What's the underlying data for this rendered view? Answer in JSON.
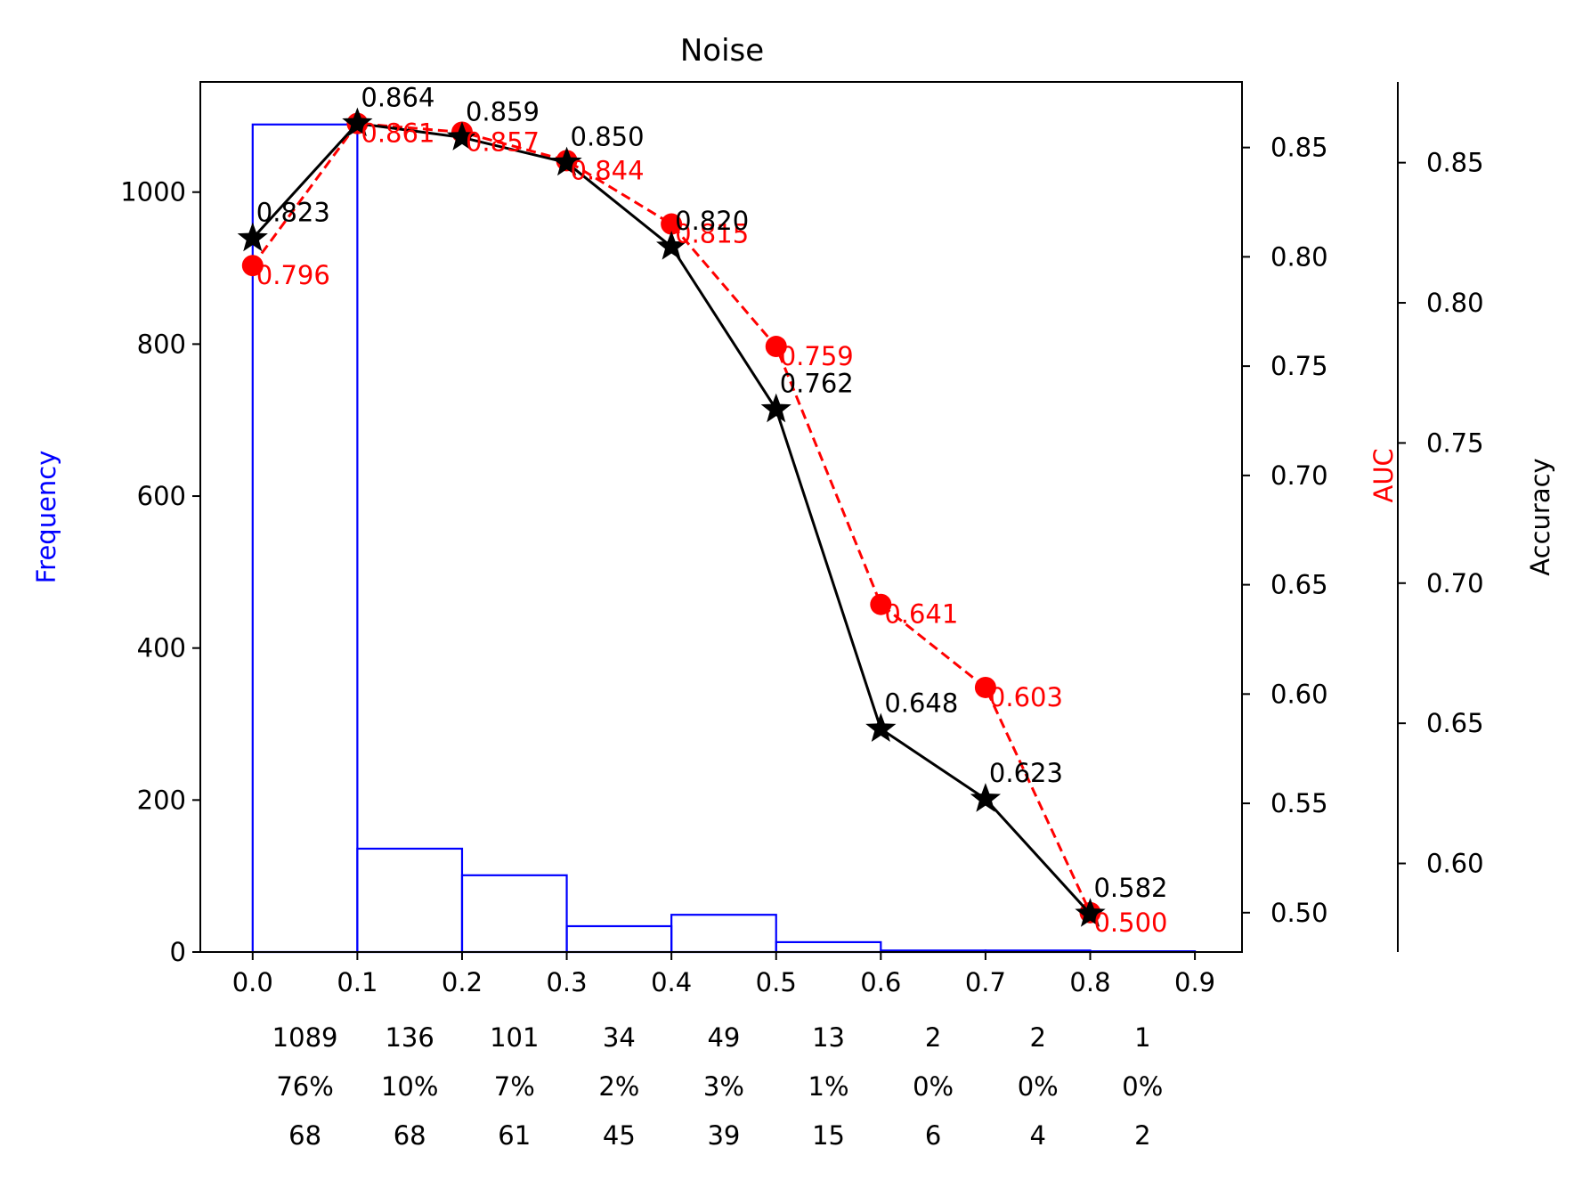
{
  "chart_data": {
    "type": "bar",
    "title": "Noise",
    "x_ticks": [
      "0.0",
      "0.1",
      "0.2",
      "0.3",
      "0.4",
      "0.5",
      "0.6",
      "0.7",
      "0.8",
      "0.9"
    ],
    "xlim": [
      -0.05,
      0.945
    ],
    "histogram": {
      "ylabel": "Frequency",
      "color": "#0000ff",
      "ylim": [
        0,
        1145
      ],
      "y_ticks": [
        0,
        200,
        400,
        600,
        800,
        1000
      ],
      "bins": [
        {
          "x0": 0.0,
          "x1": 0.1,
          "value": 1089
        },
        {
          "x0": 0.1,
          "x1": 0.2,
          "value": 136
        },
        {
          "x0": 0.2,
          "x1": 0.3,
          "value": 101
        },
        {
          "x0": 0.3,
          "x1": 0.4,
          "value": 34
        },
        {
          "x0": 0.4,
          "x1": 0.5,
          "value": 49
        },
        {
          "x0": 0.5,
          "x1": 0.6,
          "value": 13
        },
        {
          "x0": 0.6,
          "x1": 0.7,
          "value": 2
        },
        {
          "x0": 0.7,
          "x1": 0.8,
          "value": 2
        },
        {
          "x0": 0.8,
          "x1": 0.9,
          "value": 1
        }
      ]
    },
    "auc": {
      "ylabel": "AUC",
      "color": "#ff0000",
      "ylim": [
        0.482,
        0.88
      ],
      "y_ticks": [
        "0.50",
        "0.55",
        "0.60",
        "0.65",
        "0.70",
        "0.75",
        "0.80",
        "0.85"
      ],
      "x": [
        0.0,
        0.1,
        0.2,
        0.3,
        0.4,
        0.5,
        0.6,
        0.7,
        0.8
      ],
      "values": [
        0.796,
        0.861,
        0.857,
        0.844,
        0.815,
        0.759,
        0.641,
        0.603,
        0.5
      ],
      "labels": [
        "0.796",
        "0.861",
        "0.857",
        "0.844",
        "0.815",
        "0.759",
        "0.641",
        "0.603",
        "0.500"
      ]
    },
    "accuracy": {
      "ylabel": "Accuracy",
      "color": "#000000",
      "ylim": [
        0.5684,
        0.8788
      ],
      "y_ticks": [
        "0.60",
        "0.65",
        "0.70",
        "0.75",
        "0.80",
        "0.85"
      ],
      "x": [
        0.0,
        0.1,
        0.2,
        0.3,
        0.4,
        0.5,
        0.6,
        0.7,
        0.8
      ],
      "values": [
        0.823,
        0.864,
        0.859,
        0.85,
        0.82,
        0.762,
        0.648,
        0.623,
        0.582
      ],
      "labels": [
        "0.823",
        "0.864",
        "0.859",
        "0.850",
        "0.820",
        "0.762",
        "0.648",
        "0.623",
        "0.582"
      ]
    },
    "bin_table": {
      "counts": [
        "1089",
        "136",
        "101",
        "34",
        "49",
        "13",
        "2",
        "2",
        "1"
      ],
      "percents": [
        "76%",
        "10%",
        "7%",
        "2%",
        "3%",
        "1%",
        "0%",
        "0%",
        "0%"
      ],
      "third_row": [
        "68",
        "68",
        "61",
        "45",
        "39",
        "15",
        "6",
        "4",
        "2"
      ]
    }
  }
}
